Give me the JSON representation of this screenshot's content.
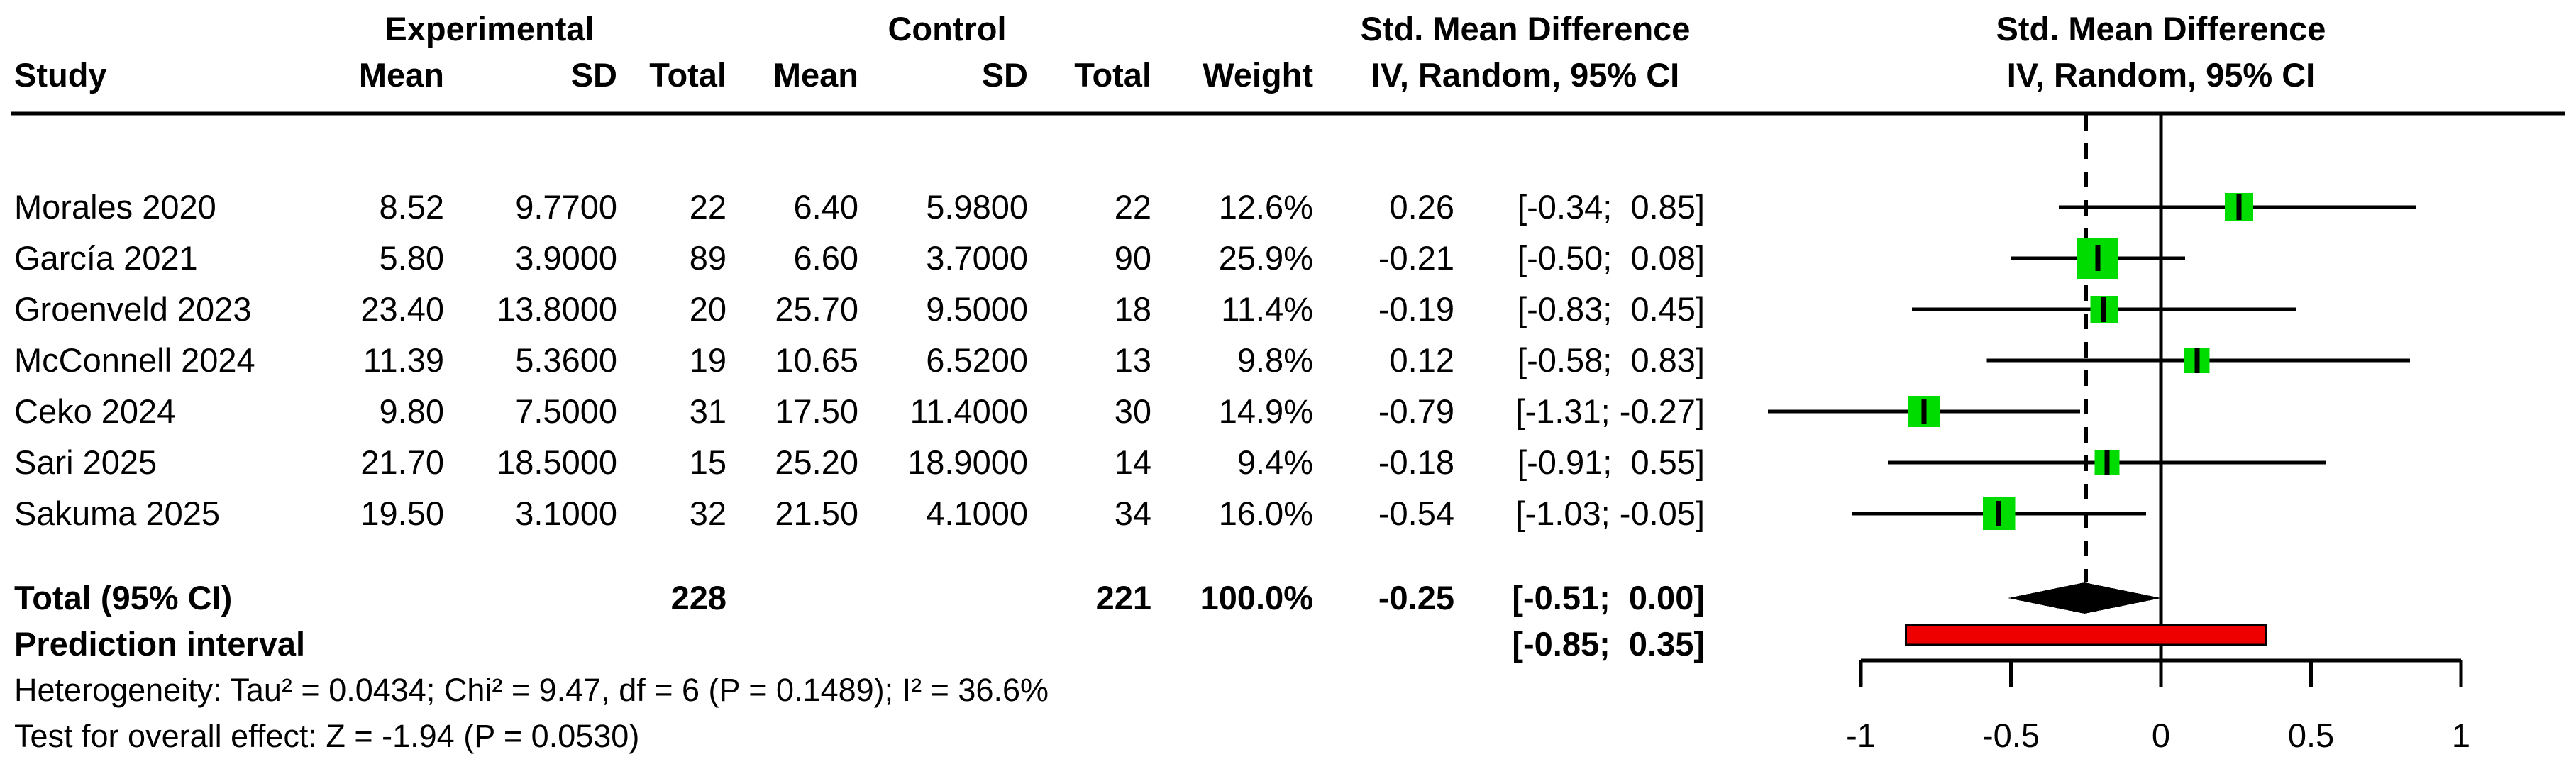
{
  "chart_data": {
    "type": "scatter",
    "variant": "forest_plot_meta_analysis",
    "effect_measure": "Std. Mean Difference",
    "model": "IV, Random, 95% CI",
    "header": {
      "study": "Study",
      "experimental": "Experimental",
      "control": "Control",
      "mean": "Mean",
      "sd": "SD",
      "total": "Total",
      "weight": "Weight",
      "smd_table_line1": "Std. Mean Difference",
      "smd_table_line2": "IV, Random, 95% CI",
      "smd_plot_line1": "Std. Mean Difference",
      "smd_plot_line2": "IV, Random, 95% CI"
    },
    "studies": [
      {
        "name": "Morales 2020",
        "mean_e": "8.52",
        "sd_e": "9.7700",
        "n_e": "22",
        "mean_c": "6.40",
        "sd_c": "5.9800",
        "n_c": "22",
        "weight": "12.6%",
        "est_text": "0.26",
        "ci_text": "[-0.34;  0.85]",
        "est": 0.26,
        "ci_low": -0.34,
        "ci_high": 0.85,
        "weight_pct": 12.6
      },
      {
        "name": "García 2021",
        "mean_e": "5.80",
        "sd_e": "3.9000",
        "n_e": "89",
        "mean_c": "6.60",
        "sd_c": "3.7000",
        "n_c": "90",
        "weight": "25.9%",
        "est_text": "-0.21",
        "ci_text": "[-0.50;  0.08]",
        "est": -0.21,
        "ci_low": -0.5,
        "ci_high": 0.08,
        "weight_pct": 25.9
      },
      {
        "name": "Groenveld 2023",
        "mean_e": "23.40",
        "sd_e": "13.8000",
        "n_e": "20",
        "mean_c": "25.70",
        "sd_c": "9.5000",
        "n_c": "18",
        "weight": "11.4%",
        "est_text": "-0.19",
        "ci_text": "[-0.83;  0.45]",
        "est": -0.19,
        "ci_low": -0.83,
        "ci_high": 0.45,
        "weight_pct": 11.4
      },
      {
        "name": "McConnell 2024",
        "mean_e": "11.39",
        "sd_e": "5.3600",
        "n_e": "19",
        "mean_c": "10.65",
        "sd_c": "6.5200",
        "n_c": "13",
        "weight": "9.8%",
        "est_text": "0.12",
        "ci_text": "[-0.58;  0.83]",
        "est": 0.12,
        "ci_low": -0.58,
        "ci_high": 0.83,
        "weight_pct": 9.8
      },
      {
        "name": "Ceko 2024",
        "mean_e": "9.80",
        "sd_e": "7.5000",
        "n_e": "31",
        "mean_c": "17.50",
        "sd_c": "11.4000",
        "n_c": "30",
        "weight": "14.9%",
        "est_text": "-0.79",
        "ci_text": "[-1.31; -0.27]",
        "est": -0.79,
        "ci_low": -1.31,
        "ci_high": -0.27,
        "weight_pct": 14.9
      },
      {
        "name": "Sari 2025",
        "mean_e": "21.70",
        "sd_e": "18.5000",
        "n_e": "15",
        "mean_c": "25.20",
        "sd_c": "18.9000",
        "n_c": "14",
        "weight": "9.4%",
        "est_text": "-0.18",
        "ci_text": "[-0.91;  0.55]",
        "est": -0.18,
        "ci_low": -0.91,
        "ci_high": 0.55,
        "weight_pct": 9.4
      },
      {
        "name": "Sakuma 2025",
        "mean_e": "19.50",
        "sd_e": "3.1000",
        "n_e": "32",
        "mean_c": "21.50",
        "sd_c": "4.1000",
        "n_c": "34",
        "weight": "16.0%",
        "est_text": "-0.54",
        "ci_text": "[-1.03; -0.05]",
        "est": -0.54,
        "ci_low": -1.03,
        "ci_high": -0.05,
        "weight_pct": 16.0
      }
    ],
    "total": {
      "label": "Total (95% CI)",
      "n_e": "228",
      "n_c": "221",
      "weight": "100.0%",
      "est_text": "-0.25",
      "ci_text": "[-0.51;  0.00]",
      "est": -0.25,
      "ci_low": -0.51,
      "ci_high": 0.0
    },
    "prediction": {
      "label": "Prediction interval",
      "ci_text": "[-0.85;  0.35]",
      "low": -0.85,
      "high": 0.35
    },
    "footnotes": {
      "heterogeneity": "Heterogeneity: Tau² = 0.0434; Chi² = 9.47, df = 6 (P = 0.1489); I² = 36.6%",
      "overall_test": "Test for overall effect: Z = -1.94 (P = 0.0530)"
    },
    "axis": {
      "xlim": [
        -1.45,
        1.15
      ],
      "tick_values": [
        -1,
        -0.5,
        0,
        0.5,
        1
      ],
      "tick_labels": [
        "-1",
        "-0.5",
        "0",
        "0.5",
        "1"
      ],
      "ref_line": 0,
      "pooled_line": -0.25,
      "grid": false
    },
    "colors": {
      "square": "#00DC00",
      "prediction_bar": "#EE0000",
      "diamond": "#000000",
      "lines": "#000000"
    }
  }
}
